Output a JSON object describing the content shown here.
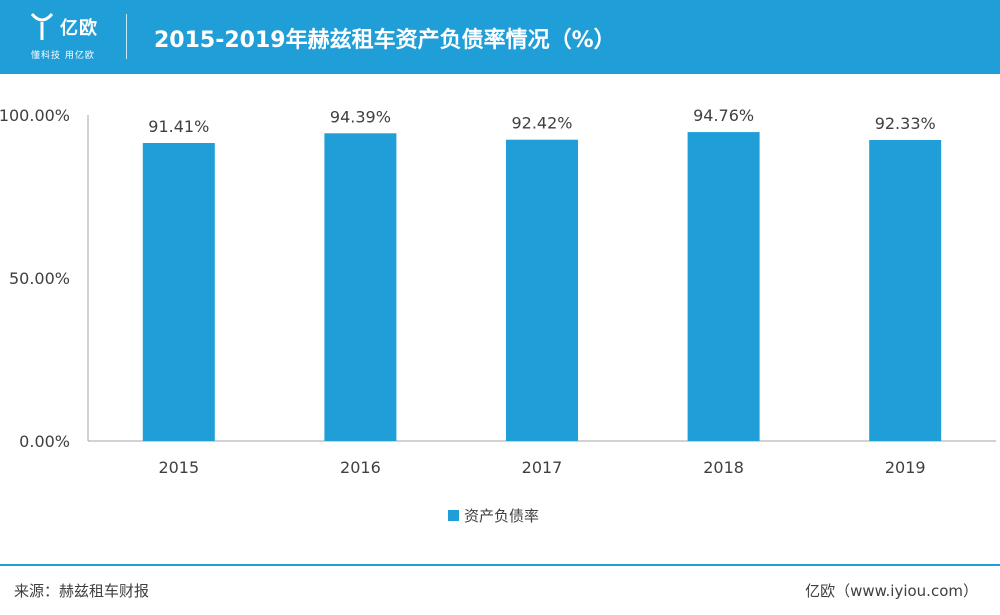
{
  "header": {
    "logo_text": "亿欧",
    "logo_subtext": "懂科技 用亿欧",
    "title": "2015-2019年赫兹租车资产负债率情况（%）"
  },
  "colors": {
    "header_bg": "#1f9ed8",
    "bar": "#1f9ed8",
    "axis": "#a6a6a6",
    "text": "#404040"
  },
  "chart_data": {
    "type": "bar",
    "categories": [
      "2015",
      "2016",
      "2017",
      "2018",
      "2019"
    ],
    "series": [
      {
        "name": "资产负债率",
        "values": [
          91.41,
          94.39,
          92.42,
          94.76,
          92.33
        ],
        "labels": [
          "91.41%",
          "94.39%",
          "92.42%",
          "94.76%",
          "92.33%"
        ]
      }
    ],
    "ylim": [
      0,
      100
    ],
    "yticks": [
      0,
      50,
      100
    ],
    "ytick_labels": [
      "0.00%",
      "50.00%",
      "100.00%"
    ],
    "xlabel": "",
    "ylabel": "",
    "grid": false,
    "legend": "bottom-center"
  },
  "footer": {
    "source": "来源：赫兹租车财报",
    "brand": "亿欧（www.iyiou.com）"
  }
}
